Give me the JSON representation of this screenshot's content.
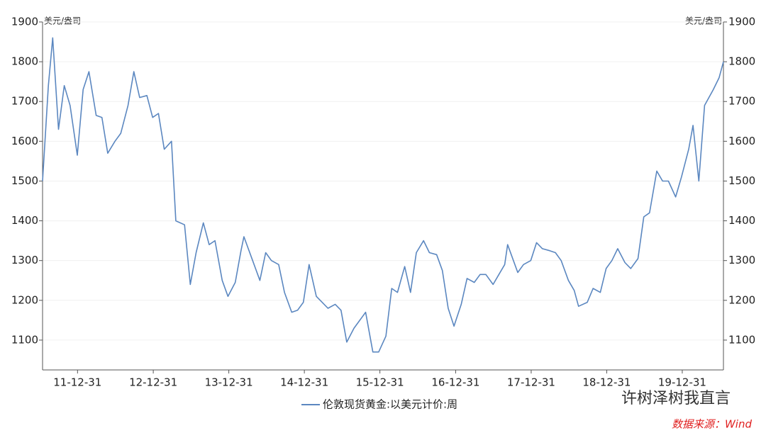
{
  "chart_data": {
    "type": "line",
    "y_unit_label": "美元/盎司",
    "y2_unit_label": "美元/盎司",
    "x": [
      "11-07-15",
      "11-08-12",
      "11-09-02",
      "11-09-30",
      "11-10-28",
      "11-11-25",
      "11-12-30",
      "12-01-27",
      "12-02-24",
      "12-03-30",
      "12-04-27",
      "12-05-25",
      "12-06-29",
      "12-07-27",
      "12-08-31",
      "12-09-28",
      "12-10-26",
      "12-11-30",
      "12-12-28",
      "13-01-25",
      "13-02-22",
      "13-03-29",
      "13-04-19",
      "13-05-31",
      "13-06-28",
      "13-07-26",
      "13-08-30",
      "13-09-27",
      "13-10-25",
      "13-11-29",
      "13-12-27",
      "14-01-31",
      "14-02-28",
      "14-03-14",
      "14-04-25",
      "14-05-30",
      "14-06-27",
      "14-07-25",
      "14-08-29",
      "14-09-26",
      "14-10-31",
      "14-11-28",
      "14-12-26",
      "15-01-23",
      "15-02-27",
      "15-03-27",
      "15-04-24",
      "15-05-29",
      "15-06-26",
      "15-07-24",
      "15-08-28",
      "15-09-25",
      "15-10-23",
      "15-11-27",
      "15-12-25",
      "16-01-29",
      "16-02-26",
      "16-03-25",
      "16-04-29",
      "16-05-27",
      "16-06-24",
      "16-07-29",
      "16-08-26",
      "16-09-30",
      "16-10-28",
      "16-11-25",
      "16-12-23",
      "17-01-27",
      "17-02-24",
      "17-03-31",
      "17-04-28",
      "17-05-26",
      "17-06-30",
      "17-07-28",
      "17-08-25",
      "17-09-08",
      "17-10-27",
      "17-11-24",
      "17-12-29",
      "18-01-26",
      "18-02-23",
      "18-03-30",
      "18-04-27",
      "18-05-25",
      "18-06-29",
      "18-07-27",
      "18-08-17",
      "18-09-28",
      "18-10-26",
      "18-11-30",
      "18-12-28",
      "19-01-25",
      "19-02-22",
      "19-03-29",
      "19-04-26",
      "19-05-31",
      "19-06-28",
      "19-07-26",
      "19-08-30",
      "19-09-27",
      "19-10-25",
      "19-11-29",
      "19-12-27",
      "20-01-31",
      "20-02-21",
      "20-03-20",
      "20-04-17",
      "20-05-29",
      "20-06-26",
      "20-07-17"
    ],
    "series": [
      {
        "name": "伦敦现货黄金:以美元计价:周",
        "color": "#5b87c0",
        "values": [
          1500,
          1740,
          1860,
          1630,
          1740,
          1690,
          1565,
          1730,
          1775,
          1665,
          1660,
          1570,
          1600,
          1620,
          1690,
          1775,
          1710,
          1715,
          1660,
          1670,
          1580,
          1600,
          1400,
          1390,
          1240,
          1320,
          1395,
          1340,
          1350,
          1250,
          1210,
          1245,
          1325,
          1360,
          1300,
          1250,
          1320,
          1300,
          1290,
          1220,
          1170,
          1175,
          1195,
          1290,
          1210,
          1195,
          1180,
          1190,
          1175,
          1095,
          1130,
          1150,
          1170,
          1070,
          1070,
          1110,
          1230,
          1220,
          1285,
          1220,
          1320,
          1350,
          1320,
          1315,
          1275,
          1180,
          1135,
          1190,
          1255,
          1245,
          1265,
          1265,
          1240,
          1265,
          1290,
          1340,
          1270,
          1290,
          1300,
          1345,
          1330,
          1325,
          1320,
          1300,
          1250,
          1225,
          1185,
          1195,
          1230,
          1220,
          1280,
          1300,
          1330,
          1295,
          1280,
          1305,
          1410,
          1420,
          1525,
          1500,
          1500,
          1460,
          1510,
          1580,
          1640,
          1500,
          1690,
          1730,
          1760,
          1800
        ]
      }
    ],
    "xlim": [
      "11-07-15",
      "20-07-17"
    ],
    "xticks": [
      "11-12-31",
      "12-12-31",
      "13-12-31",
      "14-12-31",
      "15-12-31",
      "16-12-31",
      "17-12-31",
      "18-12-31",
      "19-12-31"
    ],
    "ylim": [
      1025,
      1900
    ],
    "yticks": [
      1100,
      1200,
      1300,
      1400,
      1500,
      1600,
      1700,
      1800,
      1900
    ],
    "y2lim": [
      1025,
      1900
    ],
    "y2ticks": [
      1100,
      1200,
      1300,
      1400,
      1500,
      1600,
      1700,
      1800,
      1900
    ],
    "grid": true,
    "legend": "bottom",
    "watermark": "许树泽树我直言",
    "source": "数据来源：Wind"
  }
}
